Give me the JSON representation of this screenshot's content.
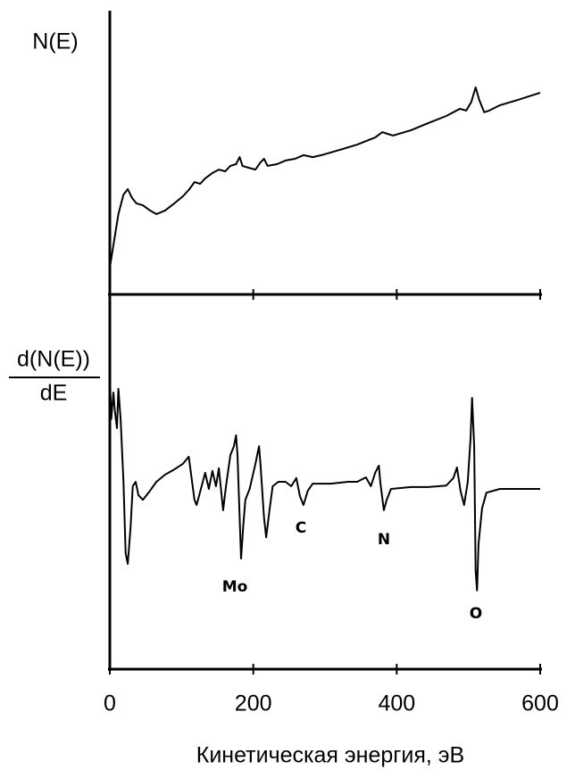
{
  "chart_data": [
    {
      "type": "line",
      "ylabel": "N(E)",
      "xlim": [
        0,
        600
      ],
      "xticks": [
        0,
        200,
        400,
        600
      ],
      "ylim": [
        0,
        100
      ],
      "series": [
        {
          "color": "#000000",
          "x": [
            0,
            6,
            12,
            19,
            25,
            31,
            37,
            46,
            56,
            65,
            77,
            90,
            102,
            111,
            118,
            126,
            133,
            143,
            152,
            161,
            168,
            176,
            181,
            185,
            193,
            203,
            210,
            215,
            220,
            233,
            245,
            258,
            270,
            283,
            295,
            320,
            345,
            370,
            380,
            387,
            395,
            420,
            444,
            469,
            488,
            497,
            504,
            510,
            515,
            522,
            529,
            544,
            569,
            600
          ],
          "values": [
            9.4,
            18.9,
            28.3,
            35.2,
            37.1,
            34.0,
            32.1,
            31.4,
            29.6,
            28.3,
            29.6,
            32.1,
            34.6,
            37.1,
            39.6,
            39.0,
            40.9,
            42.8,
            44.0,
            43.4,
            45.3,
            45.9,
            48.4,
            45.3,
            44.7,
            44.0,
            46.5,
            47.8,
            45.3,
            45.9,
            47.2,
            47.8,
            49.1,
            48.4,
            49.1,
            50.9,
            52.8,
            55.3,
            57.2,
            56.6,
            56.0,
            57.9,
            60.4,
            62.9,
            65.4,
            64.8,
            67.9,
            73.0,
            68.6,
            64.2,
            64.8,
            66.7,
            68.6,
            71.1
          ]
        }
      ]
    },
    {
      "type": "line",
      "ylabel": {
        "numerator": "d(N(E))",
        "denominator": "dE"
      },
      "xlabel": "Кинетическая энергия, эВ",
      "xlim": [
        0,
        600
      ],
      "xticks": [
        0,
        200,
        400,
        600
      ],
      "ylim": [
        0,
        100
      ],
      "annotations": [
        "Mo",
        "C",
        "N",
        "O"
      ],
      "series": [
        {
          "color": "#000000",
          "x": [
            0,
            2,
            5,
            7,
            10,
            12,
            15,
            19,
            22,
            25,
            29,
            32,
            36,
            40,
            46,
            56,
            65,
            77,
            90,
            102,
            110,
            113,
            118,
            121,
            127,
            133,
            138,
            143,
            148,
            152,
            156,
            158,
            162,
            168,
            173,
            176,
            178,
            181,
            183,
            186,
            189,
            195,
            203,
            208,
            210,
            215,
            218,
            223,
            227,
            235,
            245,
            253,
            260,
            265,
            270,
            276,
            283,
            308,
            332,
            345,
            357,
            364,
            370,
            375,
            377,
            382,
            386,
            392,
            420,
            444,
            469,
            479,
            484,
            489,
            494,
            499,
            503,
            505,
            508,
            510,
            512,
            514,
            519,
            525,
            544,
            569,
            600
          ],
          "values": [
            78.6,
            66.7,
            73.8,
            69.0,
            64.3,
            74.8,
            66.7,
            50.0,
            31.0,
            28.1,
            38.1,
            48.8,
            50.0,
            46.4,
            45.2,
            47.6,
            50.0,
            51.9,
            53.3,
            54.8,
            56.7,
            52.4,
            45.2,
            43.8,
            48.1,
            52.4,
            48.1,
            52.9,
            48.8,
            53.6,
            46.2,
            42.4,
            48.8,
            57.1,
            59.5,
            62.4,
            57.1,
            40.5,
            29.5,
            38.1,
            45.2,
            48.1,
            54.8,
            59.5,
            54.8,
            40.5,
            35.2,
            42.9,
            48.8,
            50.0,
            50.0,
            48.8,
            51.0,
            46.2,
            43.8,
            47.6,
            49.5,
            49.5,
            50.0,
            50.0,
            51.2,
            48.8,
            52.4,
            54.3,
            50.0,
            42.4,
            45.2,
            48.1,
            48.6,
            48.6,
            49.0,
            51.0,
            53.8,
            47.6,
            43.8,
            50.0,
            61.9,
            72.4,
            59.5,
            26.2,
            21.0,
            33.3,
            42.9,
            47.1,
            48.1,
            48.1,
            48.1
          ]
        }
      ]
    }
  ]
}
